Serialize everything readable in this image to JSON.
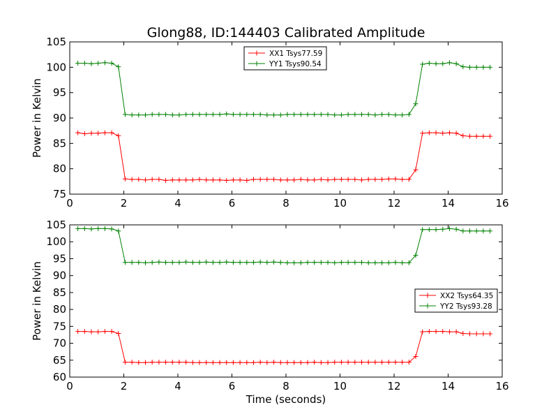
{
  "title": "Glong88, ID:144403 Calibrated Amplitude",
  "chart_data": [
    {
      "type": "line",
      "title": "Glong88, ID:144403 Calibrated Amplitude",
      "xlabel": "",
      "ylabel": "Power in Kelvin",
      "xlim": [
        0,
        16
      ],
      "ylim": [
        75,
        105
      ],
      "xticks": [
        0,
        2,
        4,
        6,
        8,
        10,
        12,
        14,
        16
      ],
      "yticks": [
        75,
        80,
        85,
        90,
        95,
        100,
        105
      ],
      "legend_position": "top-center",
      "x": [
        0.3,
        0.55,
        0.8,
        1.05,
        1.3,
        1.55,
        1.8,
        2.05,
        2.3,
        2.55,
        2.8,
        3.05,
        3.3,
        3.55,
        3.8,
        4.05,
        4.3,
        4.55,
        4.8,
        5.05,
        5.3,
        5.55,
        5.8,
        6.05,
        6.3,
        6.55,
        6.8,
        7.05,
        7.3,
        7.55,
        7.8,
        8.05,
        8.3,
        8.55,
        8.8,
        9.05,
        9.3,
        9.55,
        9.8,
        10.05,
        10.3,
        10.55,
        10.8,
        11.05,
        11.3,
        11.55,
        11.8,
        12.05,
        12.3,
        12.55,
        12.8,
        13.05,
        13.3,
        13.55,
        13.8,
        14.05,
        14.3,
        14.55,
        14.8,
        15.05,
        15.3,
        15.55
      ],
      "series": [
        {
          "name": "XX1 Tsys77.59",
          "color": "#ff0000",
          "values": [
            87.1,
            86.9,
            87.0,
            87.0,
            87.1,
            87.1,
            86.5,
            78.0,
            77.9,
            77.9,
            77.8,
            77.9,
            77.9,
            77.7,
            77.8,
            77.8,
            77.8,
            77.8,
            77.9,
            77.8,
            77.8,
            77.8,
            77.7,
            77.8,
            77.8,
            77.7,
            77.9,
            77.9,
            77.9,
            77.9,
            77.8,
            77.8,
            77.8,
            77.9,
            77.8,
            77.8,
            77.9,
            77.8,
            77.9,
            77.9,
            77.9,
            77.9,
            77.8,
            77.9,
            77.9,
            77.9,
            78.0,
            78.0,
            77.9,
            77.9,
            79.8,
            87.0,
            87.1,
            87.1,
            87.0,
            87.1,
            87.0,
            86.5,
            86.4,
            86.4,
            86.4,
            86.4
          ]
        },
        {
          "name": "YY1 Tsys90.54",
          "color": "#008000",
          "values": [
            100.8,
            100.8,
            100.7,
            100.8,
            100.9,
            100.8,
            100.1,
            90.7,
            90.6,
            90.6,
            90.6,
            90.7,
            90.7,
            90.7,
            90.6,
            90.6,
            90.7,
            90.7,
            90.7,
            90.7,
            90.7,
            90.7,
            90.8,
            90.7,
            90.7,
            90.7,
            90.7,
            90.7,
            90.6,
            90.6,
            90.6,
            90.7,
            90.7,
            90.7,
            90.7,
            90.7,
            90.7,
            90.7,
            90.6,
            90.6,
            90.7,
            90.7,
            90.7,
            90.7,
            90.6,
            90.7,
            90.7,
            90.6,
            90.6,
            90.7,
            92.8,
            100.6,
            100.8,
            100.7,
            100.7,
            100.9,
            100.7,
            100.1,
            100.0,
            100.0,
            100.0,
            100.0
          ]
        }
      ]
    },
    {
      "type": "line",
      "title": "",
      "xlabel": "Time (seconds)",
      "ylabel": "Power in Kelvin",
      "xlim": [
        0,
        16
      ],
      "ylim": [
        60,
        105
      ],
      "xticks": [
        0,
        2,
        4,
        6,
        8,
        10,
        12,
        14,
        16
      ],
      "yticks": [
        60,
        65,
        70,
        75,
        80,
        85,
        90,
        95,
        100,
        105
      ],
      "legend_position": "center-right",
      "x": [
        0.3,
        0.55,
        0.8,
        1.05,
        1.3,
        1.55,
        1.8,
        2.05,
        2.3,
        2.55,
        2.8,
        3.05,
        3.3,
        3.55,
        3.8,
        4.05,
        4.3,
        4.55,
        4.8,
        5.05,
        5.3,
        5.55,
        5.8,
        6.05,
        6.3,
        6.55,
        6.8,
        7.05,
        7.3,
        7.55,
        7.8,
        8.05,
        8.3,
        8.55,
        8.8,
        9.05,
        9.3,
        9.55,
        9.8,
        10.05,
        10.3,
        10.55,
        10.8,
        11.05,
        11.3,
        11.55,
        11.8,
        12.05,
        12.3,
        12.55,
        12.8,
        13.05,
        13.3,
        13.55,
        13.8,
        14.05,
        14.3,
        14.55,
        14.8,
        15.05,
        15.3,
        15.55
      ],
      "series": [
        {
          "name": "XX2 Tsys64.35",
          "color": "#ff0000",
          "values": [
            73.5,
            73.5,
            73.4,
            73.4,
            73.5,
            73.5,
            72.9,
            64.4,
            64.4,
            64.3,
            64.3,
            64.4,
            64.4,
            64.4,
            64.4,
            64.4,
            64.4,
            64.3,
            64.3,
            64.3,
            64.3,
            64.3,
            64.3,
            64.3,
            64.3,
            64.3,
            64.3,
            64.4,
            64.3,
            64.4,
            64.3,
            64.3,
            64.3,
            64.3,
            64.3,
            64.4,
            64.3,
            64.3,
            64.4,
            64.4,
            64.4,
            64.4,
            64.4,
            64.4,
            64.4,
            64.4,
            64.4,
            64.4,
            64.4,
            64.4,
            66.1,
            73.4,
            73.5,
            73.5,
            73.5,
            73.4,
            73.4,
            72.9,
            72.8,
            72.8,
            72.8,
            72.8
          ]
        },
        {
          "name": "YY2 Tsys93.28",
          "color": "#008000",
          "values": [
            103.9,
            103.9,
            103.8,
            103.9,
            103.9,
            103.8,
            103.2,
            93.9,
            93.9,
            93.9,
            93.8,
            93.9,
            94.0,
            93.9,
            93.9,
            93.9,
            94.0,
            93.9,
            93.9,
            94.0,
            93.9,
            93.9,
            94.0,
            93.9,
            93.9,
            93.9,
            93.9,
            94.0,
            93.9,
            94.0,
            93.9,
            93.8,
            93.8,
            93.8,
            93.9,
            93.9,
            93.9,
            93.9,
            93.8,
            93.9,
            93.9,
            93.9,
            93.9,
            93.8,
            93.8,
            93.8,
            93.8,
            93.9,
            93.8,
            93.8,
            96.0,
            103.6,
            103.6,
            103.6,
            103.7,
            103.9,
            103.7,
            103.2,
            103.2,
            103.2,
            103.2,
            103.2
          ]
        }
      ]
    }
  ]
}
